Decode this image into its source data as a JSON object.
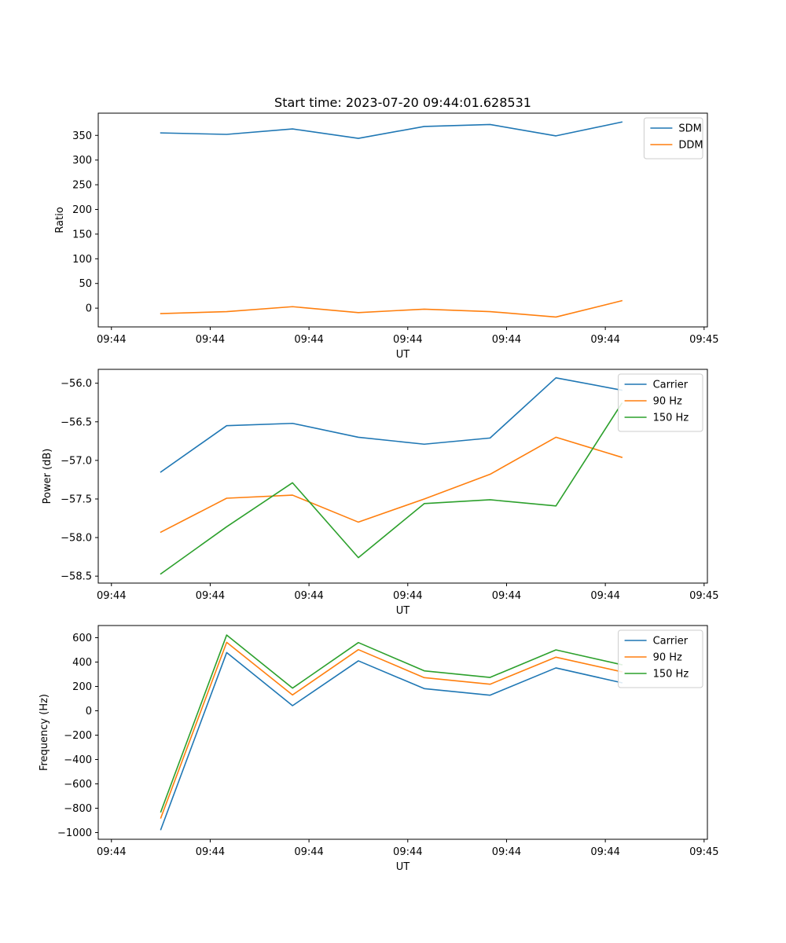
{
  "figure_title": "Start time: 2023-07-20 09:44:01.628531",
  "colors": {
    "blue": "#1f77b4",
    "orange": "#ff7f0e",
    "green": "#2ca02c"
  },
  "chart_data": [
    {
      "type": "line",
      "title": "Start time: 2023-07-20 09:44:01.628531",
      "xlabel": "UT",
      "ylabel": "Ratio",
      "x": [
        0,
        1,
        2,
        3,
        4,
        5,
        6,
        7
      ],
      "x_tick_positions": [
        -0.75,
        0.75,
        2.25,
        3.75,
        5.25,
        6.75,
        8.25
      ],
      "x_tick_labels": [
        "09:44",
        "09:44",
        "09:44",
        "09:44",
        "09:44",
        "09:44",
        "09:45"
      ],
      "xlim": [
        -0.95,
        8.3
      ],
      "ylim": [
        -38,
        395
      ],
      "y_ticks": [
        0,
        50,
        100,
        150,
        200,
        250,
        300,
        350
      ],
      "legend_position": "upper right",
      "series": [
        {
          "name": "SDM",
          "color": "#1f77b4",
          "values": [
            355,
            352,
            363,
            344,
            368,
            372,
            349,
            377
          ]
        },
        {
          "name": "DDM",
          "color": "#ff7f0e",
          "values": [
            -11,
            -7,
            3,
            -9,
            -2,
            -7,
            -18,
            15
          ]
        }
      ]
    },
    {
      "type": "line",
      "title": "",
      "xlabel": "UT",
      "ylabel": "Power (dB)",
      "x": [
        0,
        1,
        2,
        3,
        4,
        5,
        6,
        7
      ],
      "x_tick_positions": [
        -0.75,
        0.75,
        2.25,
        3.75,
        5.25,
        6.75,
        8.25
      ],
      "x_tick_labels": [
        "09:44",
        "09:44",
        "09:44",
        "09:44",
        "09:44",
        "09:44",
        "09:45"
      ],
      "xlim": [
        -0.95,
        8.3
      ],
      "ylim": [
        -58.59,
        -55.82
      ],
      "y_ticks": [
        -58.5,
        -58.0,
        -57.5,
        -57.0,
        -56.5,
        -56.0
      ],
      "y_tick_labels": [
        "−58.5",
        "−58.0",
        "−57.5",
        "−57.0",
        "−56.5",
        "−56.0"
      ],
      "legend_position": "upper right",
      "series": [
        {
          "name": "Carrier",
          "color": "#1f77b4",
          "values": [
            -57.15,
            -56.55,
            -56.52,
            -56.7,
            -56.79,
            -56.71,
            -55.93,
            -56.09
          ]
        },
        {
          "name": "90 Hz",
          "color": "#ff7f0e",
          "values": [
            -57.93,
            -57.49,
            -57.45,
            -57.8,
            -57.5,
            -57.18,
            -56.7,
            -56.96
          ]
        },
        {
          "name": "150 Hz",
          "color": "#2ca02c",
          "values": [
            -58.47,
            -57.86,
            -57.29,
            -58.26,
            -57.56,
            -57.51,
            -57.59,
            -56.26
          ]
        }
      ]
    },
    {
      "type": "line",
      "title": "",
      "xlabel": "UT",
      "ylabel": "Frequency (Hz)",
      "x": [
        0,
        1,
        2,
        3,
        4,
        5,
        6,
        7
      ],
      "x_tick_positions": [
        -0.75,
        0.75,
        2.25,
        3.75,
        5.25,
        6.75,
        8.25
      ],
      "x_tick_labels": [
        "09:44",
        "09:44",
        "09:44",
        "09:44",
        "09:44",
        "09:44",
        "09:45"
      ],
      "xlim": [
        -0.95,
        8.3
      ],
      "ylim": [
        -1055,
        700
      ],
      "y_ticks": [
        -1000,
        -800,
        -600,
        -400,
        -200,
        0,
        200,
        400,
        600
      ],
      "y_tick_labels": [
        "−1000",
        "−800",
        "−600",
        "−400",
        "−200",
        "0",
        "200",
        "400",
        "600"
      ],
      "legend_position": "upper right",
      "series": [
        {
          "name": "Carrier",
          "color": "#1f77b4",
          "values": [
            -975,
            478,
            42,
            410,
            182,
            128,
            352,
            230
          ]
        },
        {
          "name": "90 Hz",
          "color": "#ff7f0e",
          "values": [
            -880,
            562,
            130,
            502,
            272,
            218,
            440,
            320
          ]
        },
        {
          "name": "150 Hz",
          "color": "#2ca02c",
          "values": [
            -830,
            622,
            186,
            560,
            328,
            274,
            500,
            378
          ]
        }
      ]
    }
  ]
}
